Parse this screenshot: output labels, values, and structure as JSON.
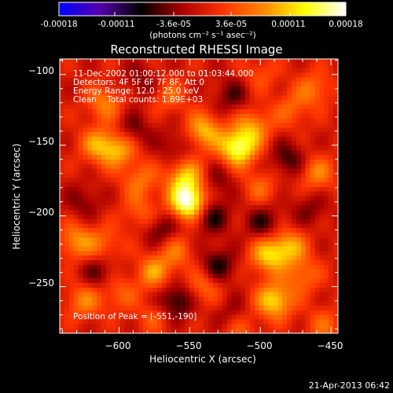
{
  "colorbar": {
    "ticks": [
      "-0.00018",
      "-0.00011",
      "-3.6e-05",
      "3.6e-05",
      "0.00011",
      "0.00018"
    ],
    "tick_values": [
      -0.00018,
      -0.00011,
      -3.6e-05,
      3.6e-05,
      0.00011,
      0.00018
    ],
    "unit_label": "(photons cm⁻² s⁻¹ asec⁻²)",
    "range": [
      -0.00018,
      0.00018
    ],
    "colors": [
      "#0000ff",
      "#5500aa",
      "#000000",
      "#aa0000",
      "#ff3300",
      "#ff8800",
      "#ffff00",
      "#ffffff"
    ]
  },
  "footer_timestamp": "21-Apr-2013 06:42",
  "chart_data": {
    "type": "heatmap",
    "title": "Reconstructed RHESSI Image",
    "xlabel": "Heliocentric X (arcsec)",
    "ylabel": "Heliocentric Y (arcsec)",
    "xlim": [
      -642,
      -445
    ],
    "ylim": [
      -283,
      -89
    ],
    "x_ticks": [
      -600,
      -550,
      -500,
      -450
    ],
    "y_ticks": [
      -100,
      -150,
      -200,
      -250
    ],
    "x_tick_labels": [
      "−600",
      "−550",
      "−500",
      "−450"
    ],
    "y_tick_labels": [
      "−100",
      "−150",
      "−200",
      "−250"
    ],
    "annotations": [
      "11-Dec-2002 01:00:12.000 to 01:03:44.000",
      "Detectors: 4F 5F 6F 7F 8F, Att 0",
      "Energy Range: 12.0 - 25.0 keV",
      "Clean    Total counts: 1.89E+03"
    ],
    "peak_label": "Position of Peak = [-551,-190]",
    "peak": [
      -551,
      -190
    ],
    "sources": [
      {
        "x": -551,
        "y": -190,
        "amp": 0.00018
      },
      {
        "x": -553,
        "y": -172,
        "amp": 0.0001
      },
      {
        "x": -516,
        "y": -152,
        "amp": 0.00015
      },
      {
        "x": -540,
        "y": -140,
        "amp": 0.0001
      },
      {
        "x": -505,
        "y": -137,
        "amp": 8e-05
      },
      {
        "x": -600,
        "y": -153,
        "amp": 9e-05
      },
      {
        "x": -615,
        "y": -150,
        "amp": 8e-05
      },
      {
        "x": -585,
        "y": -175,
        "amp": 6e-05
      },
      {
        "x": -585,
        "y": -198,
        "amp": 5e-05
      },
      {
        "x": -575,
        "y": -240,
        "amp": 8e-05
      },
      {
        "x": -560,
        "y": -225,
        "amp": 6e-05
      },
      {
        "x": -630,
        "y": -218,
        "amp": 8e-05
      },
      {
        "x": -610,
        "y": -220,
        "amp": 5e-05
      },
      {
        "x": -625,
        "y": -260,
        "amp": 7e-05
      },
      {
        "x": -600,
        "y": -255,
        "amp": 5e-05
      },
      {
        "x": -610,
        "y": -120,
        "amp": 7e-05
      },
      {
        "x": -565,
        "y": -115,
        "amp": 5e-05
      },
      {
        "x": -575,
        "y": -272,
        "amp": 4e-05
      },
      {
        "x": -540,
        "y": -250,
        "amp": 6e-05
      },
      {
        "x": -515,
        "y": -280,
        "amp": 5e-05
      },
      {
        "x": -495,
        "y": -228,
        "amp": 0.0001
      },
      {
        "x": -480,
        "y": -222,
        "amp": 9e-05
      },
      {
        "x": -490,
        "y": -260,
        "amp": 0.00012
      },
      {
        "x": -470,
        "y": -242,
        "amp": 6e-05
      },
      {
        "x": -500,
        "y": -180,
        "amp": 5e-05
      },
      {
        "x": -460,
        "y": -170,
        "amp": 7e-05
      },
      {
        "x": -462,
        "y": -110,
        "amp": 6e-05
      },
      {
        "x": -478,
        "y": -125,
        "amp": 5e-05
      },
      {
        "x": -500,
        "y": -100,
        "amp": 4e-05
      },
      {
        "x": -455,
        "y": -278,
        "amp": 5e-05
      },
      {
        "x": -590,
        "y": -140,
        "amp": -5e-05
      },
      {
        "x": -560,
        "y": -150,
        "amp": -4e-05
      },
      {
        "x": -570,
        "y": -210,
        "amp": -6e-05
      },
      {
        "x": -535,
        "y": -200,
        "amp": -7e-05
      },
      {
        "x": -530,
        "y": -175,
        "amp": -4e-05
      },
      {
        "x": -498,
        "y": -205,
        "amp": -6e-05
      },
      {
        "x": -560,
        "y": -260,
        "amp": -8e-05
      },
      {
        "x": -530,
        "y": -235,
        "amp": -7e-05
      },
      {
        "x": -480,
        "y": -160,
        "amp": -6e-05
      },
      {
        "x": -520,
        "y": -115,
        "amp": -5e-05
      },
      {
        "x": -585,
        "y": -105,
        "amp": -4e-05
      },
      {
        "x": -625,
        "y": -190,
        "amp": -4e-05
      },
      {
        "x": -615,
        "y": -240,
        "amp": -5e-05
      },
      {
        "x": -520,
        "y": -270,
        "amp": -4e-05
      },
      {
        "x": -465,
        "y": -195,
        "amp": -4e-05
      }
    ]
  }
}
